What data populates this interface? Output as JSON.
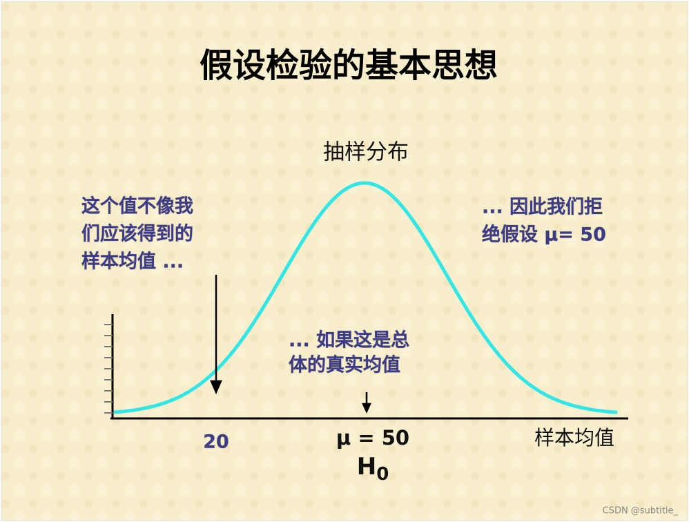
{
  "header": {
    "title": "假设检验的基本思想"
  },
  "diagram": {
    "curve_label": "抽样分布",
    "left_note": [
      "这个值不像我",
      "们应该得到的",
      "样本均值 ..."
    ],
    "right_note": [
      "... 因此我们拒",
      "绝假设 μ= 50"
    ],
    "middle_note": [
      "... 如果这是总",
      "体的真实均值"
    ],
    "x_axis_label": "样本均值",
    "sample_mark": "20",
    "mean_mark": "μ = 50",
    "hypothesis": {
      "main": "H",
      "subscript": "0"
    }
  },
  "footer": {
    "watermark": "CSDN @subtitle_"
  }
}
